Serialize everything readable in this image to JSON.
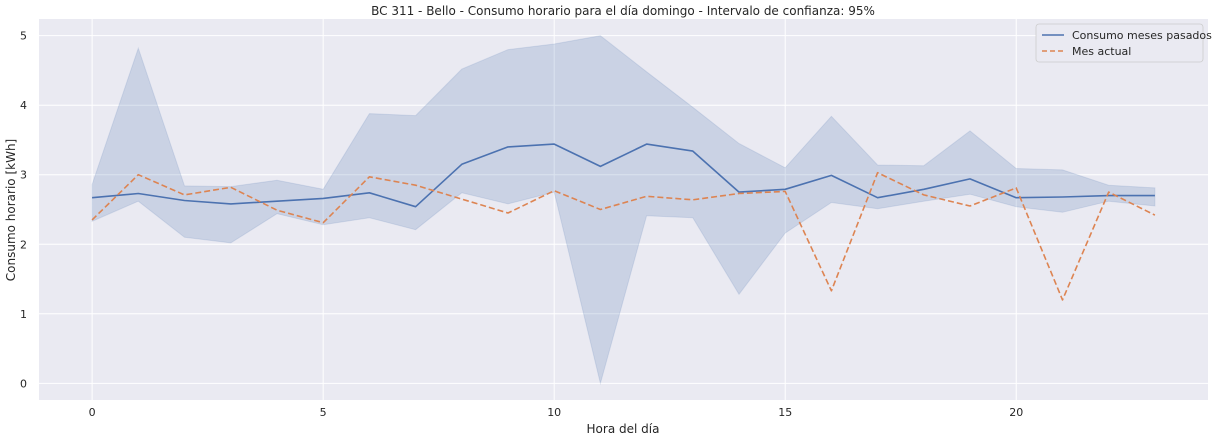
{
  "chart_data": {
    "type": "line",
    "title": "BC 311 - Bello - Consumo horario para el día domingo - Intervalo de confianza: 95%",
    "xlabel": "Hora del día",
    "ylabel": "Consumo horario [kWh]",
    "xlim": [
      -1.15,
      24.15
    ],
    "ylim": [
      -0.24,
      5.24
    ],
    "xticks": [
      0,
      5,
      10,
      15,
      20
    ],
    "yticks": [
      0,
      1,
      2,
      3,
      4,
      5
    ],
    "grid": true,
    "legend_position": "top-right",
    "x": [
      0,
      1,
      2,
      3,
      4,
      5,
      6,
      7,
      8,
      9,
      10,
      11,
      12,
      13,
      14,
      15,
      16,
      17,
      18,
      19,
      20,
      21,
      22,
      23
    ],
    "series": [
      {
        "name": "Consumo meses pasados",
        "style": "solid",
        "color": "#4c72b0",
        "values": [
          2.67,
          2.73,
          2.63,
          2.58,
          2.62,
          2.66,
          2.74,
          2.54,
          3.15,
          3.4,
          3.44,
          3.12,
          3.44,
          3.34,
          2.75,
          2.79,
          2.99,
          2.67,
          2.79,
          2.94,
          2.67,
          2.68,
          2.7,
          2.7
        ],
        "ci_upper": [
          2.86,
          4.82,
          2.84,
          2.83,
          2.92,
          2.79,
          3.88,
          3.85,
          4.52,
          4.8,
          4.88,
          5.0,
          4.48,
          3.97,
          3.45,
          3.1,
          3.84,
          3.14,
          3.13,
          3.63,
          3.09,
          3.07,
          2.85,
          2.81
        ],
        "ci_lower": [
          2.33,
          2.62,
          2.1,
          2.02,
          2.44,
          2.28,
          2.38,
          2.21,
          2.74,
          2.58,
          2.75,
          0.0,
          2.41,
          2.38,
          1.28,
          2.16,
          2.6,
          2.51,
          2.62,
          2.72,
          2.54,
          2.46,
          2.62,
          2.55
        ]
      },
      {
        "name": "Mes actual",
        "style": "dashed",
        "color": "#dd8452",
        "values": [
          2.35,
          3.0,
          2.71,
          2.82,
          2.49,
          2.31,
          2.97,
          2.85,
          2.65,
          2.45,
          2.77,
          2.5,
          2.69,
          2.64,
          2.73,
          2.76,
          1.33,
          3.03,
          2.71,
          2.55,
          2.81,
          1.2,
          2.75,
          2.42
        ]
      }
    ],
    "colors": {
      "plot_background": "#eaeaf2",
      "grid": "#ffffff",
      "ci_band": "#4c72b0"
    }
  }
}
